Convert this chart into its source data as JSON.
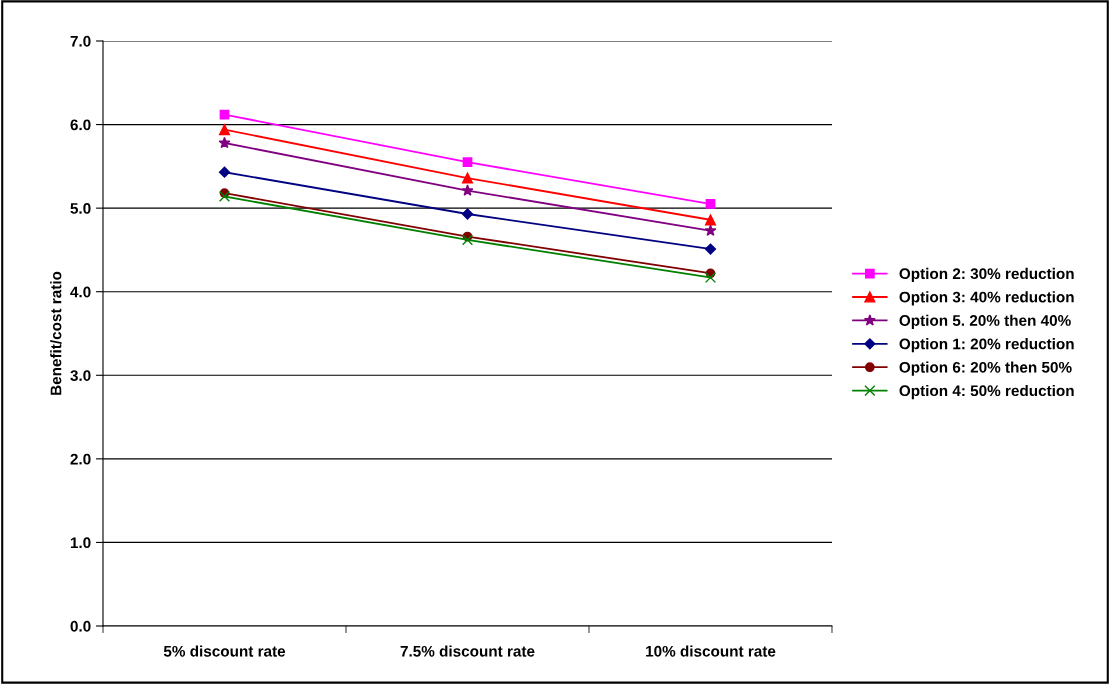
{
  "chart_data": {
    "type": "line",
    "ylabel": "Benefit/cost ratio",
    "categories": [
      "5% discount rate",
      "7.5% discount rate",
      "10% discount rate"
    ],
    "ylim": [
      0,
      7
    ],
    "yticks": [
      {
        "value": 0,
        "label": "0.0"
      },
      {
        "value": 1,
        "label": "1.0"
      },
      {
        "value": 2,
        "label": "2.0"
      },
      {
        "value": 3,
        "label": "3.0"
      },
      {
        "value": 4,
        "label": "4.0"
      },
      {
        "value": 5,
        "label": "5.0"
      },
      {
        "value": 6,
        "label": "6.0"
      },
      {
        "value": 7,
        "label": "7.0"
      }
    ],
    "grid": "y",
    "legend": "right",
    "series": [
      {
        "name": "Option 2: 30% reduction",
        "color": "#ff00ff",
        "marker": "square",
        "values": [
          6.12,
          5.55,
          5.05
        ]
      },
      {
        "name": "Option 3: 40% reduction",
        "color": "#ff0000",
        "marker": "triangle",
        "values": [
          5.94,
          5.36,
          4.86
        ]
      },
      {
        "name": "Option 5. 20% then 40%",
        "color": "#800080",
        "marker": "star",
        "values": [
          5.78,
          5.21,
          4.73
        ]
      },
      {
        "name": "Option 1: 20% reduction",
        "color": "#000080",
        "marker": "diamond",
        "values": [
          5.43,
          4.93,
          4.51
        ]
      },
      {
        "name": "Option 6: 20% then 50%",
        "color": "#800000",
        "marker": "circle",
        "values": [
          5.18,
          4.66,
          4.22
        ]
      },
      {
        "name": "Option 4: 50% reduction",
        "color": "#008000",
        "marker": "cross",
        "values": [
          5.14,
          4.62,
          4.17
        ]
      }
    ]
  }
}
